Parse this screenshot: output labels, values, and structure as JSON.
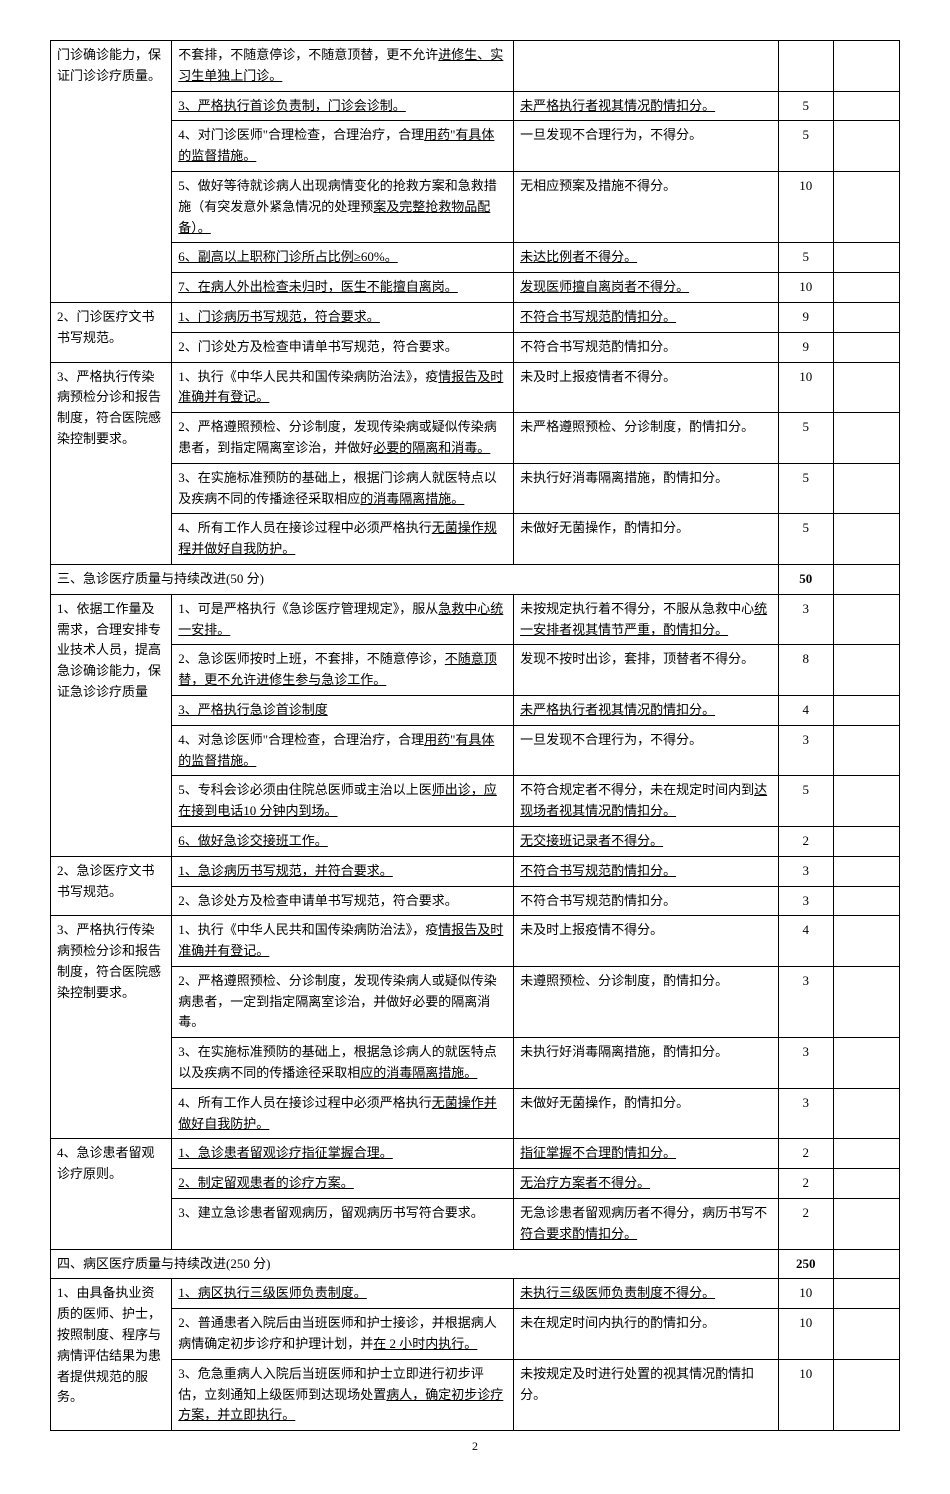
{
  "rows": [
    {
      "c1": "门诊确诊能力，保证门诊诊疗质量。",
      "c1rs": 6,
      "c2": "不套排，不随意停诊，不随意顶替，更不允许进修生、实习生单独上门诊。",
      "c2u": false,
      "c2u2": "进修生、实习生单独上门诊。",
      "c3": "",
      "c4": ""
    },
    {
      "c2": "3、严格执行首诊负责制，门诊会诊制。",
      "c2u": true,
      "c3": "未严格执行者视其情况酌情扣分。",
      "c3u": true,
      "c4": "5"
    },
    {
      "c2": "4、对门诊医师\"合理检查，合理治疗，合理用药\"有具体的监督措施。",
      "c2u": false,
      "c2u2": "用药\"有具体的监督措施。",
      "c3": "一旦发现不合理行为，不得分。",
      "c4": "5"
    },
    {
      "c2": "5、做好等待就诊病人出现病情变化的抢救方案和急救措施（有突发意外紧急情况的处理预案及完整抢救物品配备）。",
      "c2u": false,
      "c2u2": "案及完整抢救物品配备）。",
      "c3": "无相应预案及措施不得分。",
      "c4": "10"
    },
    {
      "c2": "6、副高以上职称门诊所占比例≥60%。",
      "c2u": true,
      "c3": "未达比例者不得分。",
      "c3u": true,
      "c4": "5"
    },
    {
      "c2": "7、在病人外出检查未归时，医生不能擅自离岗。",
      "c2u": true,
      "c3": "发现医师擅自离岗者不得分。",
      "c3u": true,
      "c4": "10"
    },
    {
      "c1": "2、门诊医疗文书书写规范。",
      "c1rs": 2,
      "c2": "1、门诊病历书写规范，符合要求。",
      "c2u": true,
      "c3": "不符合书写规范酌情扣分。",
      "c3u": true,
      "c4": "9"
    },
    {
      "c2": "2、门诊处方及检查申请单书写规范，符合要求。",
      "c3": "不符合书写规范酌情扣分。",
      "c4": "9"
    },
    {
      "c1": "3、严格执行传染病预检分诊和报告制度，符合医院感染控制要求。",
      "c1rs": 4,
      "c2": "1、执行《中华人民共和国传染病防治法》，疫情报告及时准确并有登记。",
      "c2u": false,
      "c2u2": "情报告及时准确并有登记。",
      "c3": "未及时上报疫情者不得分。",
      "c4": "10"
    },
    {
      "c2": "2、严格遵照预检、分诊制度，发现传染病或疑似传染病患者，到指定隔离室诊治，并做好必要的隔离和消毒。",
      "c2u": false,
      "c2u2": "必要的隔离和消毒。",
      "c3": "未严格遵照预检、分诊制度，酌情扣分。",
      "c4": "5"
    },
    {
      "c2": "3、在实施标准预防的基础上，根据门诊病人就医特点以及疾病不同的传播途径采取相应的消毒隔离措施。",
      "c2u": false,
      "c2u2": "的消毒隔离措施。",
      "c3": "未执行好消毒隔离措施，酌情扣分。",
      "c4": "5"
    },
    {
      "c2": "4、所有工作人员在接诊过程中必须严格执行无菌操作规程并做好自我防护。",
      "c2u": false,
      "c2u2": "无菌操作规程并做好自我防护。",
      "c3": "未做好无菌操作，酌情扣分。",
      "c4": "5"
    }
  ],
  "section3_title": "三、急诊医疗质量与持续改进(50 分)",
  "section3_score": "50",
  "section3_rows": [
    {
      "c1": "1、依据工作量及需求，合理安排专业技术人员，提高急诊确诊能力，保证急诊诊疗质量",
      "c1rs": 6,
      "c2": "1、可是严格执行《急诊医疗管理规定》，服从急救中心统一安排。",
      "c2u": false,
      "c2u2": "急救中心统一安排。",
      "c3": "未按规定执行着不得分，不服从急救中心统一安排者视其情节严重，酌情扣分。",
      "c3u": false,
      "c3u2": "统一安排者视其情节严重，酌情扣分。",
      "c4": "3"
    },
    {
      "c2": "2、急诊医师按时上班，不套排，不随意停诊，不随意顶替，更不允许进修生参与急诊工作。",
      "c2u": false,
      "c2u2": "不随意顶替，更不允许进修生参与急诊工作。",
      "c3": "发现不按时出诊，套排，顶替者不得分。",
      "c4": "8"
    },
    {
      "c2": "3、严格执行急诊首诊制度",
      "c2u": true,
      "c3": "未严格执行者视其情况酌情扣分。",
      "c3u": true,
      "c4": "4"
    },
    {
      "c2": "4、对急诊医师\"合理检查，合理治疗，合理用药\"有具体的监督措施。",
      "c2u": false,
      "c2u2": "用药\"有具体的监督措施。",
      "c3": "一旦发现不合理行为，不得分。",
      "c4": "3"
    },
    {
      "c2": "5、专科会诊必须由住院总医师或主治以上医师出诊，应在接到电话10 分钟内到场。",
      "c2u": false,
      "c2u2": "师出诊，应在接到电话10 分钟内到场。",
      "c3": "不符合规定者不得分，未在规定时间内到达现场者视其情况酌情扣分。",
      "c3u": false,
      "c3u2": "达现场者视其情况酌情扣分。",
      "c4": "5"
    },
    {
      "c2": "6、做好急诊交接班工作。",
      "c2u": true,
      "c3": "无交接班记录者不得分。",
      "c3u": true,
      "c4": "2"
    },
    {
      "c1": "2、急诊医疗文书书写规范。",
      "c1rs": 2,
      "c2": "1、急诊病历书写规范，并符合要求。",
      "c2u": true,
      "c3": "不符合书写规范酌情扣分。",
      "c3u": true,
      "c4": "3"
    },
    {
      "c2": "2、急诊处方及检查申请单书写规范，符合要求。",
      "c3": "不符合书写规范酌情扣分。",
      "c4": "3"
    },
    {
      "c1": "3、严格执行传染病预检分诊和报告制度，符合医院感染控制要求。",
      "c1rs": 4,
      "c2": "1、执行《中华人民共和国传染病防治法》，疫情报告及时准确并有登记。",
      "c2u": false,
      "c2u2": "情报告及时准确并有登记。",
      "c3": "未及时上报疫情不得分。",
      "c4": "4"
    },
    {
      "c2": "2、严格遵照预检、分诊制度，发现传染病人或疑似传染病患者，一定到指定隔离室诊治，并做好必要的隔离消毒。",
      "c3": "未遵照预检、分诊制度，酌情扣分。",
      "c4": "3"
    },
    {
      "c2": "3、在实施标准预防的基础上，根据急诊病人的就医特点以及疾病不同的传播途径采取相应的消毒隔离措施。",
      "c2u": false,
      "c2u2": "应的消毒隔离措施。",
      "c3": "未执行好消毒隔离措施，酌情扣分。",
      "c4": "3"
    },
    {
      "c2": "4、所有工作人员在接诊过程中必须严格执行无菌操作并做好自我防护。",
      "c2u": false,
      "c2u2": "无菌操作并做好自我防护。",
      "c3": "未做好无菌操作，酌情扣分。",
      "c4": "3"
    },
    {
      "c1": "4、急诊患者留观诊疗原则。",
      "c1rs": 3,
      "c2": "1、急诊患者留观诊疗指征掌握合理。",
      "c2u": true,
      "c3": "指征掌握不合理酌情扣分。",
      "c3u": true,
      "c4": "2"
    },
    {
      "c2": "2、制定留观患者的诊疗方案。",
      "c2u": true,
      "c3": "无治疗方案者不得分。",
      "c3u": true,
      "c4": "2"
    },
    {
      "c2": "3、建立急诊患者留观病历，留观病历书写符合要求。",
      "c3": "无急诊患者留观病历者不得分，病历书写不符合要求酌情扣分。",
      "c3u": false,
      "c3u2": "符合要求酌情扣分。",
      "c4": "2"
    }
  ],
  "section4_title": "四、病区医疗质量与持续改进(250 分)",
  "section4_score": "250",
  "section4_rows": [
    {
      "c1": "1、由具备执业资质的医师、护士，按照制度、程序与病情评估结果为患者提供规范的服务。",
      "c1rs": 3,
      "c2": "1、病区执行三级医师负责制度。",
      "c2u": true,
      "c3": "未执行三级医师负责制度不得分。",
      "c3u": true,
      "c4": "10"
    },
    {
      "c2": "2、普通患者入院后由当班医师和护士接诊，并根据病人病情确定初步诊疗和护理计划，并在 2 小时内执行。",
      "c2u": false,
      "c2u2": "在 2 小时内执行。",
      "c3": "未在规定时间内执行的酌情扣分。",
      "c4": "10"
    },
    {
      "c2": "3、危急重病人入院后当班医师和护士立即进行初步评估，立刻通知上级医师到达现场处置病人，确定初步诊疗方案，并立即执行。",
      "c2u": false,
      "c2u2": "病人，确定初步诊疗方案，并立即执行。",
      "c3": "未按规定及时进行处置的视其情况酌情扣分。",
      "c4": "10"
    }
  ],
  "page_number": "2"
}
